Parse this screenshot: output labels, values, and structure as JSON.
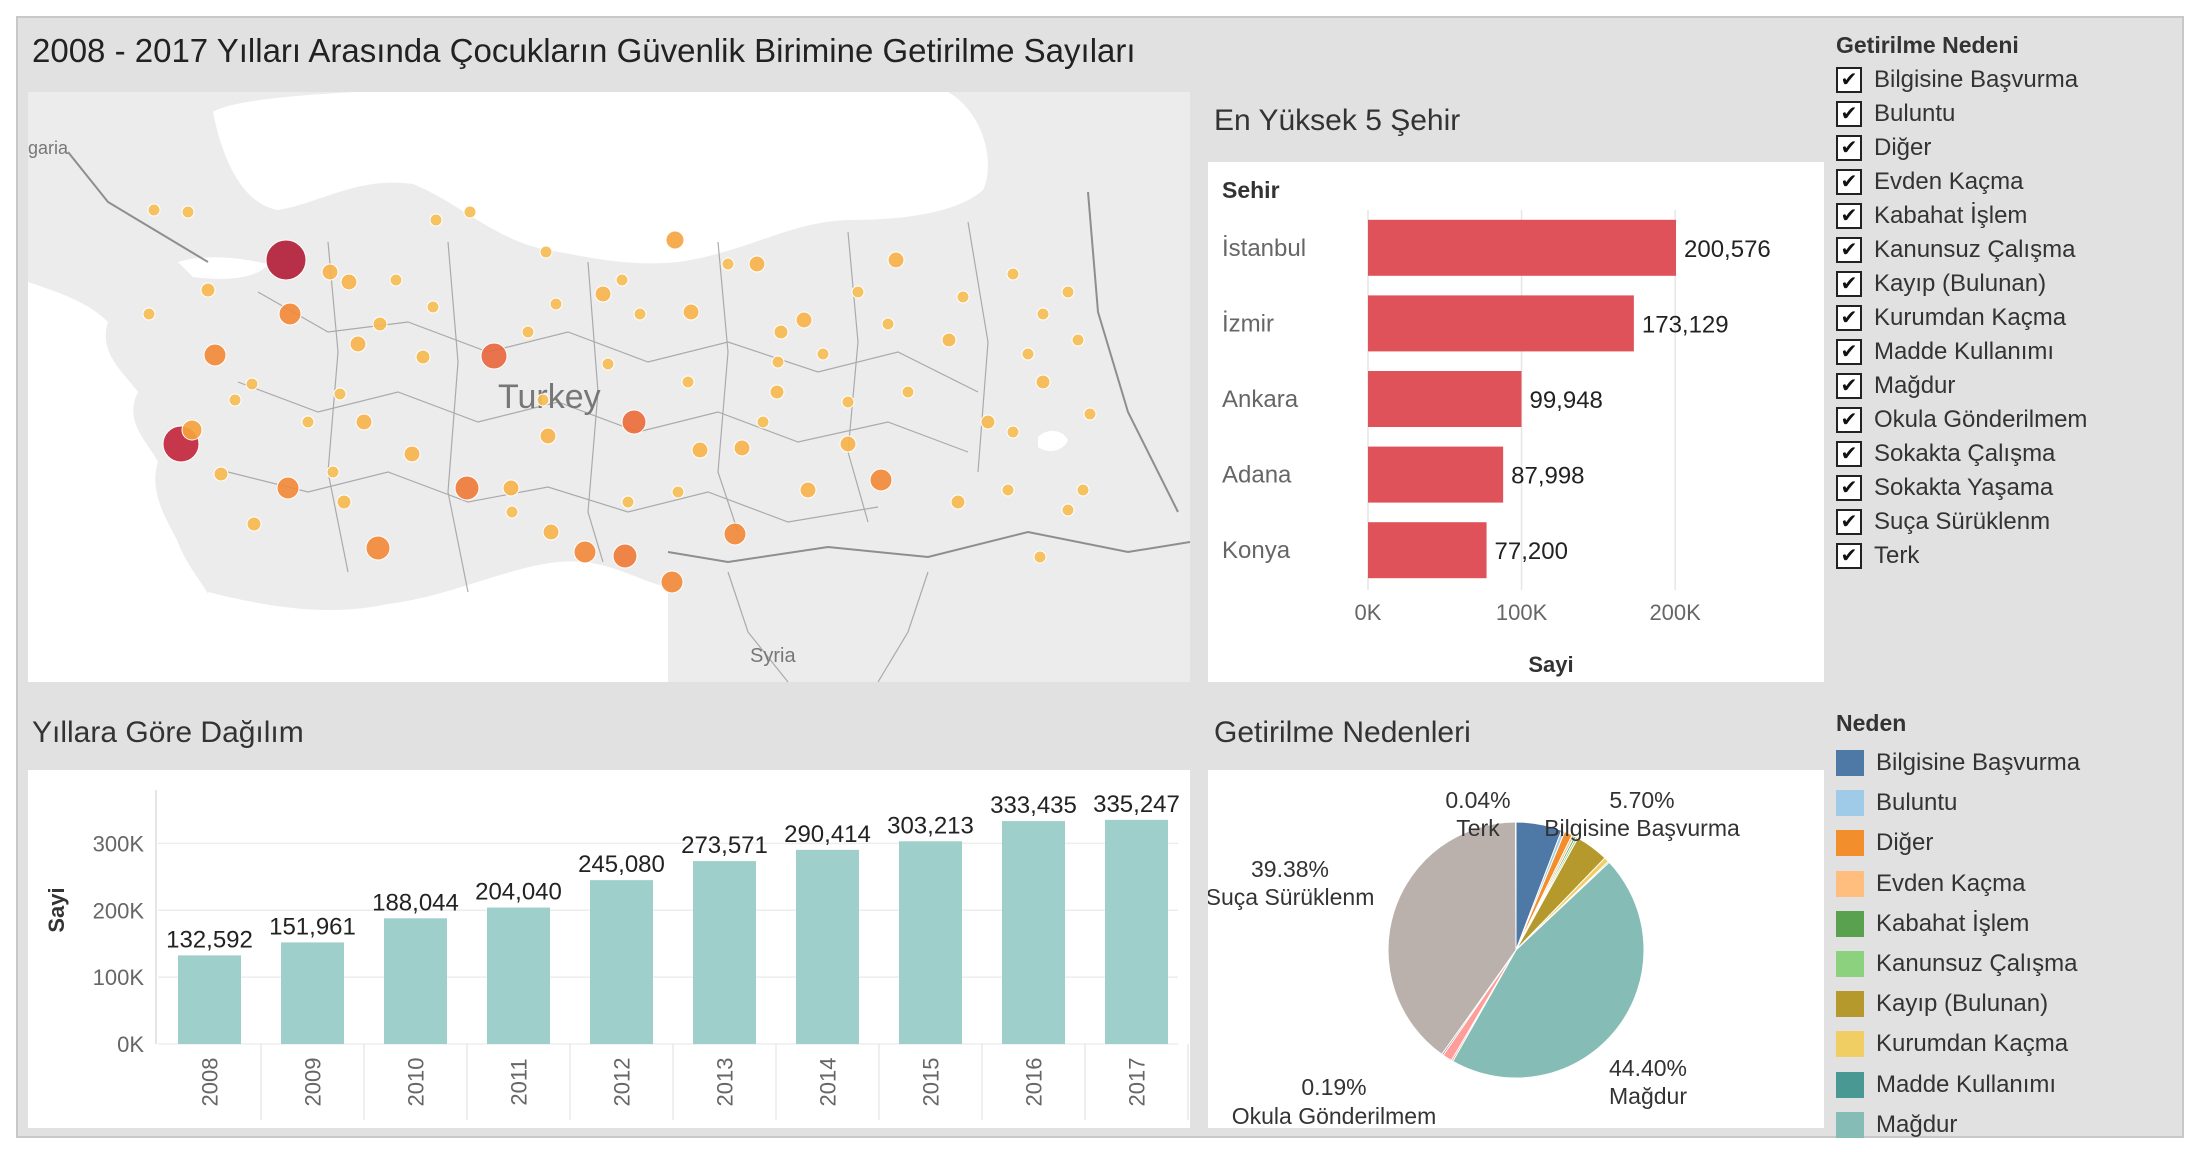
{
  "dashboard_title": "2008 - 2017 Yılları Arasında Çocukların Güvenlik Birimine Getirilme Sayıları",
  "map": {
    "labels": {
      "turkey": "Turkey",
      "syria": "Syria",
      "bulgaria_partial": "garia"
    },
    "colors": {
      "sea": "#ffffff",
      "land": "#ececec",
      "border": "#8e8e8e"
    }
  },
  "top5": {
    "title": "En Yüksek 5 Şehir",
    "header": "Sehir",
    "color": "#e0525a",
    "chart_data": {
      "type": "bar",
      "orientation": "horizontal",
      "categories": [
        "İstanbul",
        "İzmir",
        "Ankara",
        "Adana",
        "Konya"
      ],
      "values": [
        200576,
        173129,
        99948,
        87998,
        77200
      ],
      "value_labels": [
        "200,576",
        "173,129",
        "99,948",
        "87,998",
        "77,200"
      ],
      "xlabel": "Sayi",
      "x_ticks": [
        "0K",
        "100K",
        "200K"
      ],
      "xlim": [
        0,
        280000
      ],
      "grid": true
    }
  },
  "yearly": {
    "title": "Yıllara Göre Dağılım",
    "color": "#9fcfcb",
    "chart_data": {
      "type": "bar",
      "categories": [
        "2008",
        "2009",
        "2010",
        "2011",
        "2012",
        "2013",
        "2014",
        "2015",
        "2016",
        "2017"
      ],
      "values": [
        132592,
        151961,
        188044,
        204040,
        245080,
        273571,
        290414,
        303213,
        333435,
        335247
      ],
      "value_labels": [
        "132,592",
        "151,961",
        "188,044",
        "204,040",
        "245,080",
        "273,571",
        "290,414",
        "303,213",
        "333,435",
        "335,247"
      ],
      "ylabel": "Sayi",
      "y_ticks": [
        "0K",
        "100K",
        "200K",
        "300K"
      ],
      "ylim": [
        0,
        350000
      ],
      "grid": true
    }
  },
  "reasons": {
    "title": "Getirilme Nedenleri",
    "chart_data": {
      "type": "pie",
      "slices": [
        {
          "name": "Bilgisine Başvurma",
          "value": 5.7,
          "color": "#4e79a7"
        },
        {
          "name": "Buluntu",
          "value": 0.4,
          "color": "#a0cbe8"
        },
        {
          "name": "Diğer",
          "value": 1.0,
          "color": "#f28e2b"
        },
        {
          "name": "Evden Kaçma",
          "value": 0.3,
          "color": "#ffbe7d"
        },
        {
          "name": "Kabahat İşlem",
          "value": 0.25,
          "color": "#59a14f"
        },
        {
          "name": "Kanunsuz Çalışma",
          "value": 0.25,
          "color": "#8cd17d"
        },
        {
          "name": "Kayıp (Bulunan)",
          "value": 4.1,
          "color": "#b6992d"
        },
        {
          "name": "Kurumdan Kaçma",
          "value": 0.6,
          "color": "#f1ce63"
        },
        {
          "name": "Madde Kullanımı",
          "value": 0.15,
          "color": "#499894"
        },
        {
          "name": "Mağdur",
          "value": 44.4,
          "color": "#86bcb6"
        },
        {
          "name": "Okula Gönderilmem",
          "value": 0.19,
          "color": "#e15759"
        },
        {
          "name": "Sokakta Çalışma",
          "value": 1.2,
          "color": "#ff9d9a"
        },
        {
          "name": "Sokakta Yaşama",
          "value": 0.2,
          "color": "#79706e"
        },
        {
          "name": "Suça Sürüklenm",
          "value": 39.38,
          "color": "#bab0ac"
        },
        {
          "name": "Terk",
          "value": 0.04,
          "color": "#d37295"
        }
      ],
      "labels": [
        {
          "name": "Terk",
          "pct": "0.04%"
        },
        {
          "name": "Bilgisine Başvurma",
          "pct": "5.70%"
        },
        {
          "name": "Suça Sürüklenm",
          "pct": "39.38%"
        },
        {
          "name": "Okula Gönderilmem",
          "pct": "0.19%"
        },
        {
          "name": "Mağdur",
          "pct": "44.40%"
        }
      ]
    }
  },
  "filter": {
    "title": "Getirilme Nedeni",
    "check_glyph": "✔",
    "items": [
      "Bilgisine Başvurma",
      "Buluntu",
      "Diğer",
      "Evden Kaçma",
      "Kabahat İşlem",
      "Kanunsuz Çalışma",
      "Kayıp (Bulunan)",
      "Kurumdan Kaçma",
      "Madde Kullanımı",
      "Mağdur",
      "Okula Gönderilmem",
      "Sokakta Çalışma",
      "Sokakta Yaşama",
      "Suça Sürüklenm",
      "Terk"
    ]
  },
  "legend": {
    "title": "Neden",
    "items": [
      {
        "label": "Bilgisine Başvurma",
        "color": "#4e79a7"
      },
      {
        "label": "Buluntu",
        "color": "#a0cbe8"
      },
      {
        "label": "Diğer",
        "color": "#f28e2b"
      },
      {
        "label": "Evden Kaçma",
        "color": "#ffbe7d"
      },
      {
        "label": "Kabahat İşlem",
        "color": "#59a14f"
      },
      {
        "label": "Kanunsuz Çalışma",
        "color": "#8cd17d"
      },
      {
        "label": "Kayıp (Bulunan)",
        "color": "#b6992d"
      },
      {
        "label": "Kurumdan Kaçma",
        "color": "#f1ce63"
      },
      {
        "label": "Madde Kullanımı",
        "color": "#499894"
      },
      {
        "label": "Mağdur",
        "color": "#86bcb6"
      }
    ]
  }
}
